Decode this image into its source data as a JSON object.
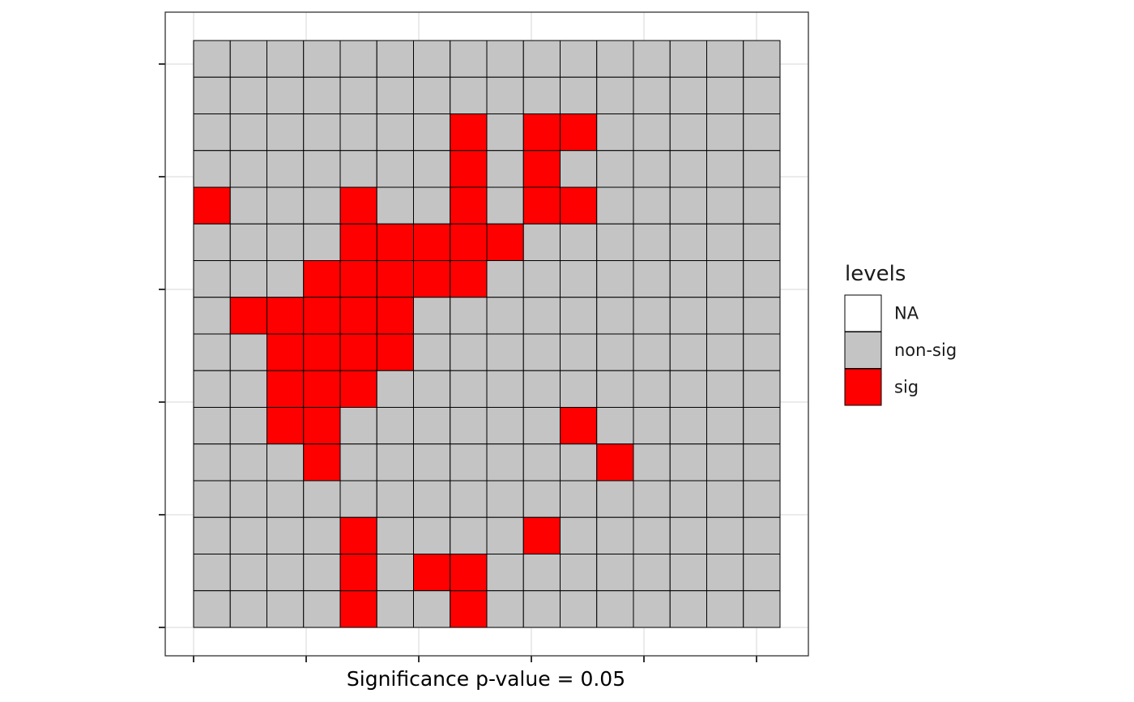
{
  "chart_data": {
    "type": "heatmap",
    "xlabel": "Significance p-value = 0.05",
    "ylabel": "",
    "title": "",
    "grid": true,
    "legend": {
      "title": "levels",
      "placement": "right",
      "entries": [
        {
          "label": "NA",
          "color": "#ffffff"
        },
        {
          "label": "non-sig",
          "color": "#c4c4c4"
        },
        {
          "label": "sig",
          "color": "#ff0000"
        }
      ]
    },
    "ncols": 16,
    "nrows": 16,
    "rows": [
      "0000000000000000",
      "0000000000000000",
      "0000000101100000",
      "0000000101000000",
      "1000100101100000",
      "0000111110000000",
      "0001111100000000",
      "0111110000000000",
      "0011110000000000",
      "0011100000000000",
      "0011000000100000",
      "0001000000010000",
      "0000000000000000",
      "0000100001000000",
      "0000101100000000",
      "0000100100000000"
    ],
    "colors": {
      "sig": "#ff0000",
      "non_sig": "#c4c4c4",
      "na": "#ffffff"
    }
  }
}
